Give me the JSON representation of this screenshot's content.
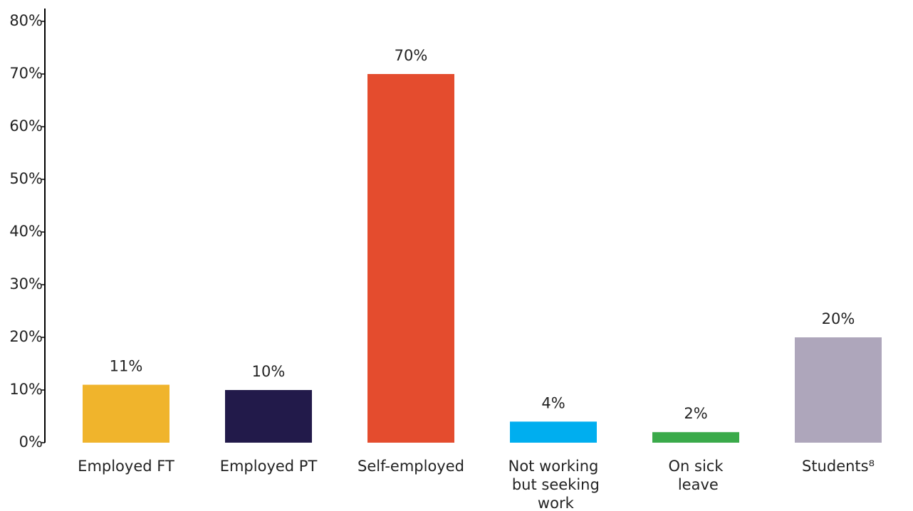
{
  "chart_data": {
    "type": "bar",
    "categories": [
      "Employed FT",
      "Employed PT",
      "Self-employed",
      "Not working but seeking work",
      "On sick leave",
      "Students⁸"
    ],
    "values": [
      11,
      10,
      70,
      4,
      2,
      20
    ],
    "value_labels": [
      "11%",
      "10%",
      "70%",
      "4%",
      "2%",
      "20%"
    ],
    "colors": [
      "#f0b42c",
      "#221a4a",
      "#e44c2e",
      "#00aeef",
      "#3aaa4a",
      "#aea6bb"
    ],
    "ylim": [
      0,
      80
    ],
    "yticks": [
      {
        "value": 0,
        "label": "0%"
      },
      {
        "value": 10,
        "label": "10%"
      },
      {
        "value": 20,
        "label": "20%"
      },
      {
        "value": 30,
        "label": "30%"
      },
      {
        "value": 40,
        "label": "40%"
      },
      {
        "value": 50,
        "label": "50%"
      },
      {
        "value": 60,
        "label": "60%"
      },
      {
        "value": 70,
        "label": "70%"
      },
      {
        "value": 80,
        "label": "80%"
      }
    ],
    "grid": false
  }
}
